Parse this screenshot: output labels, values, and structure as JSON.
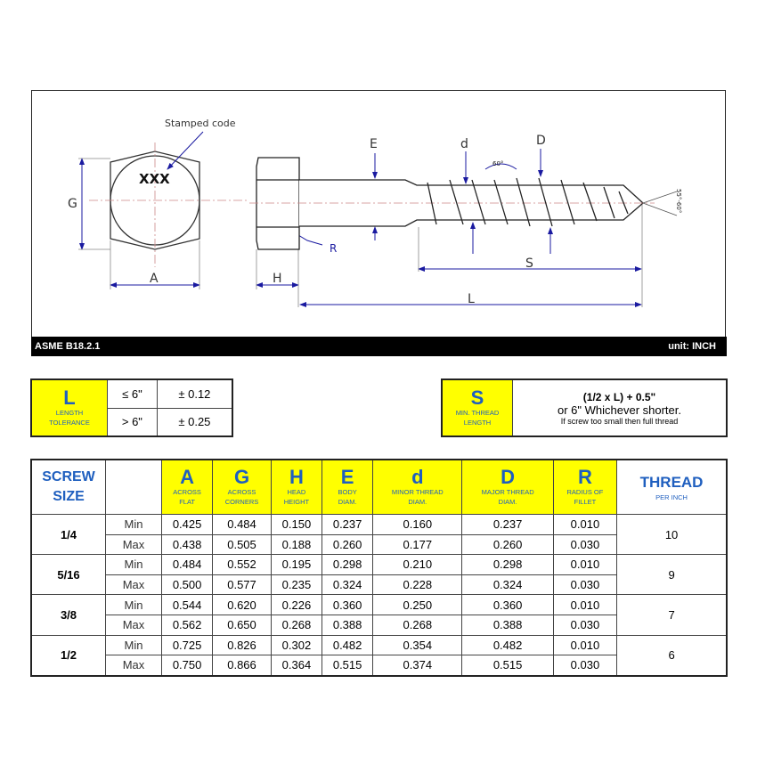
{
  "drawing": {
    "labels": {
      "stamped_code": "Stamped code",
      "xxx": "XXX",
      "G": "G",
      "A": "A",
      "H": "H",
      "R": "R",
      "E": "E",
      "d": "d",
      "D": "D",
      "S": "S",
      "L": "L",
      "thread_angle": "60°",
      "point_angle": "55°-60°"
    },
    "standard": "ASME B18.2.1",
    "unit": "unit: INCH"
  },
  "length_tolerance": {
    "symbol": "L",
    "caption1": "LENGTH",
    "caption2": "TOLERANCE",
    "rows": [
      {
        "cond": "≤ 6\"",
        "tol": "± 0.12"
      },
      {
        "cond": "> 6\"",
        "tol": "± 0.25"
      }
    ]
  },
  "thread_length": {
    "symbol": "S",
    "caption1": "MIN. THREAD",
    "caption2": "LENGTH",
    "line1": "(1/2 x L) + 0.5\"",
    "line2": "or 6\" Whichever shorter.",
    "line3": "If screw too small then full thread"
  },
  "table": {
    "size_header": [
      "SCREW",
      "SIZE"
    ],
    "columns": [
      {
        "sym": "A",
        "c1": "ACROSS",
        "c2": "FLAT"
      },
      {
        "sym": "G",
        "c1": "ACROSS",
        "c2": "CORNERS"
      },
      {
        "sym": "H",
        "c1": "HEAD",
        "c2": "HEIGHT"
      },
      {
        "sym": "E",
        "c1": "BODY",
        "c2": "DIAM."
      },
      {
        "sym": "d",
        "c1": "MINOR Thread",
        "c2": "DIAM."
      },
      {
        "sym": "D",
        "c1": "MAJOR Thread",
        "c2": "DIAM."
      },
      {
        "sym": "R",
        "c1": "RADIUS OF",
        "c2": "FILLET"
      }
    ],
    "thread_header": {
      "sym": "THREAD",
      "c1": "PER INCH"
    },
    "min_label": "Min",
    "max_label": "Max",
    "rows": [
      {
        "size": "1/4",
        "tpi": "10",
        "min": [
          "0.425",
          "0.484",
          "0.150",
          "0.237",
          "0.160",
          "0.237",
          "0.010"
        ],
        "max": [
          "0.438",
          "0.505",
          "0.188",
          "0.260",
          "0.177",
          "0.260",
          "0.030"
        ]
      },
      {
        "size": "5/16",
        "tpi": "9",
        "min": [
          "0.484",
          "0.552",
          "0.195",
          "0.298",
          "0.210",
          "0.298",
          "0.010"
        ],
        "max": [
          "0.500",
          "0.577",
          "0.235",
          "0.324",
          "0.228",
          "0.324",
          "0.030"
        ]
      },
      {
        "size": "3/8",
        "tpi": "7",
        "min": [
          "0.544",
          "0.620",
          "0.226",
          "0.360",
          "0.250",
          "0.360",
          "0.010"
        ],
        "max": [
          "0.562",
          "0.650",
          "0.268",
          "0.388",
          "0.268",
          "0.388",
          "0.030"
        ]
      },
      {
        "size": "1/2",
        "tpi": "6",
        "min": [
          "0.725",
          "0.826",
          "0.302",
          "0.482",
          "0.354",
          "0.482",
          "0.010"
        ],
        "max": [
          "0.750",
          "0.866",
          "0.364",
          "0.515",
          "0.374",
          "0.515",
          "0.030"
        ]
      }
    ]
  },
  "colors": {
    "accent_yellow": "#ffff00",
    "label_blue": "#1f5fbf",
    "dimension_blue": "#1a1aa0"
  }
}
